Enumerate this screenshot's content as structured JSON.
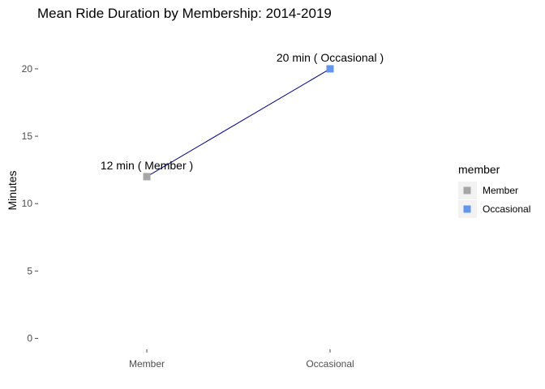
{
  "chart_data": {
    "type": "line",
    "title": "Mean Ride Duration by Membership: 2014-2019",
    "xlabel": "",
    "ylabel": "Minutes",
    "categories": [
      "Member",
      "Occasional"
    ],
    "values": [
      12,
      20
    ],
    "point_labels": [
      "12 min ( Member )",
      "20 min ( Occasional )"
    ],
    "point_colors": [
      "#a6a6a6",
      "#6495ed"
    ],
    "line_color": "#00008b",
    "ylim": [
      0,
      20.5
    ],
    "yticks": [
      0,
      5,
      10,
      15,
      20
    ],
    "ytick_labels": [
      "0",
      "5",
      "10",
      "15",
      "20"
    ],
    "grid": false,
    "legend": {
      "title": "member",
      "position": "right",
      "items": [
        {
          "label": "Member",
          "color": "#a6a6a6"
        },
        {
          "label": "Occasional",
          "color": "#6495ed"
        }
      ]
    }
  }
}
